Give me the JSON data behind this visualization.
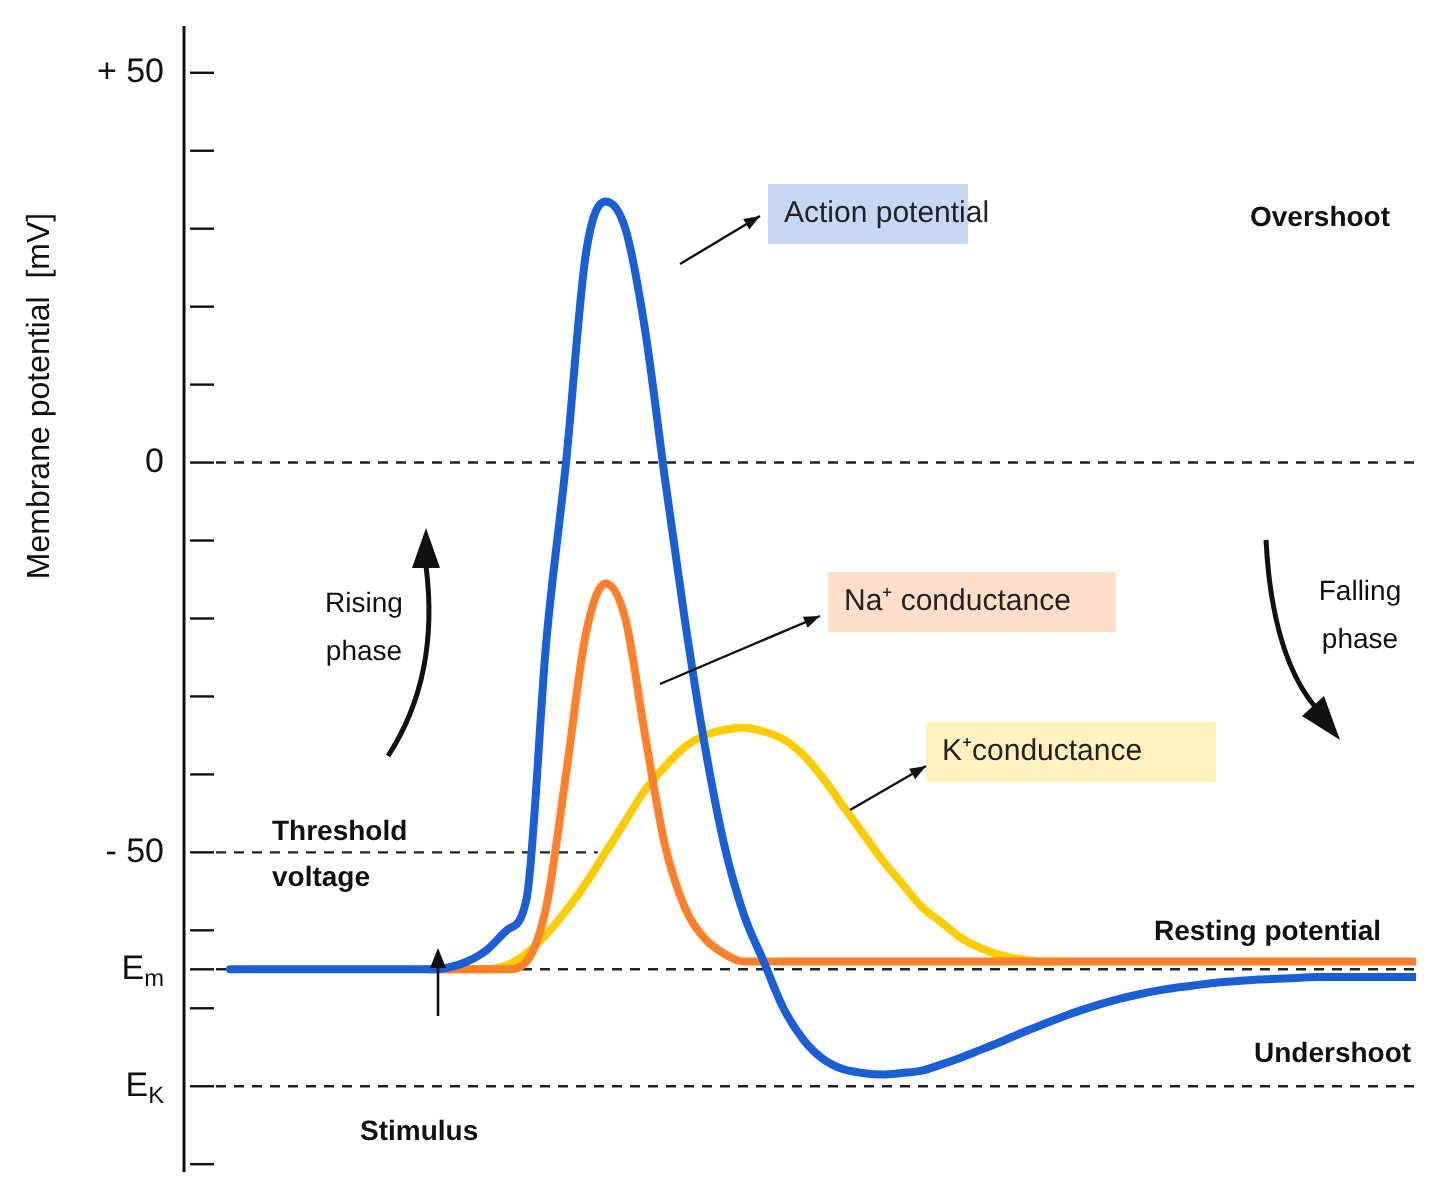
{
  "chart_data": {
    "type": "line",
    "ylabel": "Membrane potential  [mV]",
    "categories": [
      null,
      null,
      null,
      null,
      null,
      null,
      null,
      null,
      null,
      null,
      null,
      null,
      null,
      null,
      null,
      null,
      null,
      null,
      null,
      null,
      null,
      null,
      null,
      null,
      null,
      null,
      null,
      null,
      null,
      null,
      null,
      null,
      null,
      null,
      null,
      null,
      null,
      null,
      null,
      null,
      null,
      null,
      null,
      null,
      null,
      null,
      null,
      null,
      null,
      null,
      null,
      null,
      null,
      null,
      null,
      null,
      null,
      null,
      null,
      null,
      null
    ],
    "series": [
      {
        "name": "Action potential",
        "color": "#1a5fd6",
        "values": [
          -65,
          -65,
          -65,
          -65,
          -65,
          -65,
          -65,
          -65,
          -65,
          -65,
          -65,
          -64.8,
          -64,
          -62.5,
          -60,
          -56,
          -23,
          0,
          26.7,
          33.5,
          30,
          17,
          -2,
          -20,
          -36,
          -49,
          -58,
          -64,
          -70,
          -74,
          -76.5,
          -77.8,
          -78.3,
          -78.5,
          -78.3,
          -78,
          -77.2,
          -76.3,
          -75.3,
          -74.3,
          -73.2,
          -72.2,
          -71.2,
          -70.3,
          -69.5,
          -68.8,
          -68.2,
          -67.7,
          -67.3,
          -67,
          -66.7,
          -66.5,
          -66.3,
          -66.2,
          -66.1,
          -66,
          -66,
          -66,
          -66,
          -66,
          -66
        ]
      },
      {
        "name": "Na⁺ conductance",
        "color": "#ff7f2a",
        "values": [
          null,
          null,
          null,
          null,
          null,
          null,
          null,
          null,
          null,
          null,
          -65,
          -65,
          -65,
          -65,
          -65,
          -64,
          -57,
          -40,
          -22,
          -15.5,
          -20,
          -35,
          -49,
          -57,
          -61,
          -63,
          -64,
          -64,
          -64,
          -64,
          -64,
          -64,
          -64,
          -64,
          -64,
          -64,
          -64,
          -64,
          -64,
          -64,
          -64,
          -64,
          -64,
          -64,
          -64,
          -64,
          -64,
          -64,
          -64,
          -64,
          -64,
          -64,
          -64,
          -64,
          -64,
          -64,
          -64,
          -64,
          -64,
          -64,
          -64
        ]
      },
      {
        "name": "K⁺conductance",
        "color": "#ffcc00",
        "values": [
          null,
          null,
          null,
          null,
          null,
          null,
          null,
          null,
          null,
          null,
          -65,
          -65,
          -65,
          -65,
          -64.5,
          -63,
          -60.5,
          -57.5,
          -54,
          -50,
          -46,
          -42,
          -39,
          -36.5,
          -35,
          -34.3,
          -34,
          -34.5,
          -35.5,
          -37.5,
          -40.5,
          -44,
          -47.5,
          -51,
          -54,
          -57,
          -59,
          -61,
          -62.3,
          -63.2,
          -63.7,
          -64,
          -64,
          null,
          null,
          null,
          null,
          null,
          null,
          null,
          null,
          null,
          null,
          null,
          null,
          null,
          null,
          null,
          null,
          null,
          null
        ]
      }
    ],
    "ylim": [
      -91,
      56
    ],
    "yticks": [
      {
        "value": 50,
        "label": "+ 50"
      },
      {
        "value": 40,
        "label": null
      },
      {
        "value": 30,
        "label": null
      },
      {
        "value": 20,
        "label": null
      },
      {
        "value": 10,
        "label": null
      },
      0,
      {
        "value": -10,
        "label": null
      },
      {
        "value": -20,
        "label": null
      },
      {
        "value": -30,
        "label": null
      },
      {
        "value": -40,
        "label": null
      },
      {
        "value": -50,
        "label": "- 50"
      },
      {
        "value": -60,
        "label": null
      },
      {
        "value": -65,
        "label": "E$_{m}$"
      },
      {
        "value": -70,
        "label": null
      },
      {
        "value": -80,
        "label": "E$_{K}$"
      },
      {
        "value": -90,
        "label": null
      }
    ],
    "ref_lines": [
      {
        "axis": "y",
        "value": 0,
        "line_style": "dashed"
      },
      {
        "axis": "y",
        "value": -50,
        "label": "Threshold voltage",
        "line_style": "dashed"
      },
      {
        "axis": "y",
        "value": -65,
        "line_style": "dashed"
      },
      {
        "axis": "y",
        "value": -80,
        "line_style": "dashed"
      }
    ],
    "annotations": [
      "Overshoot",
      "Rising phase",
      "Falling phase",
      "Resting potential",
      "Undershoot",
      "Stimulus"
    ],
    "tick_labels": "y",
    "grid": false,
    "legend": false,
    "marker": "none",
    "line_style": "solid"
  }
}
